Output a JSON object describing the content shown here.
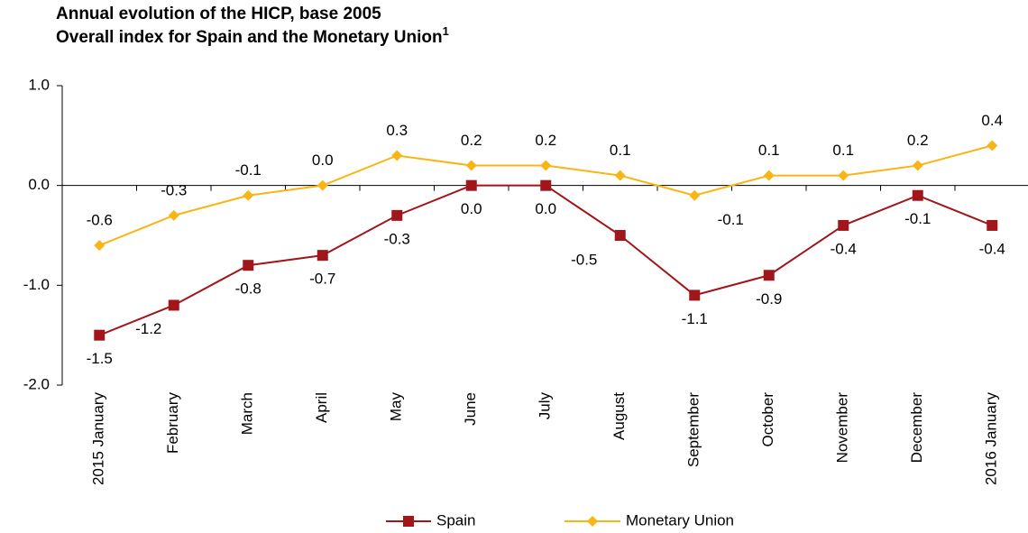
{
  "chart_data": {
    "type": "line",
    "title": "Annual evolution of the HICP, base 2005",
    "subtitle": "Overall index for Spain and the Monetary Union",
    "subtitle_note": "1",
    "categories": [
      "2015 January",
      "February",
      "March",
      "April",
      "May",
      "June",
      "July",
      "August",
      "September",
      "October",
      "November",
      "December",
      "2016 January"
    ],
    "series": [
      {
        "name": "Spain",
        "color": "#a0161b",
        "marker": "square",
        "values": [
          -1.5,
          -1.2,
          -0.8,
          -0.7,
          -0.3,
          0.0,
          0.0,
          -0.5,
          -1.1,
          -0.9,
          -0.4,
          -0.1,
          -0.4
        ],
        "value_labels": [
          "-1.5",
          "-1.2",
          "-0.8",
          "-0.7",
          "-0.3",
          "0.0",
          "0.0",
          "-0.5",
          "-1.1",
          "-0.9",
          "-0.4",
          "-0.1",
          "-0.4"
        ]
      },
      {
        "name": "Monetary Union",
        "color": "#f9b516",
        "marker": "diamond",
        "values": [
          -0.6,
          -0.3,
          -0.1,
          0.0,
          0.3,
          0.2,
          0.2,
          0.1,
          -0.1,
          0.1,
          0.1,
          0.2,
          0.4
        ],
        "value_labels": [
          "-0.6",
          "-0.3",
          "-0.1",
          "0.0",
          "0.3",
          "0.2",
          "0.2",
          "0.1",
          "-0.1",
          "0.1",
          "0.1",
          "0.2",
          "0.4"
        ]
      }
    ],
    "ylim": [
      -2,
      1
    ],
    "yticks": [
      {
        "value": 1,
        "label": "1.0"
      },
      {
        "value": 0,
        "label": "0.0"
      },
      {
        "value": -1,
        "label": "-1.0"
      },
      {
        "value": -2,
        "label": "-2.0"
      }
    ],
    "grid": false,
    "legend": "bottom"
  }
}
